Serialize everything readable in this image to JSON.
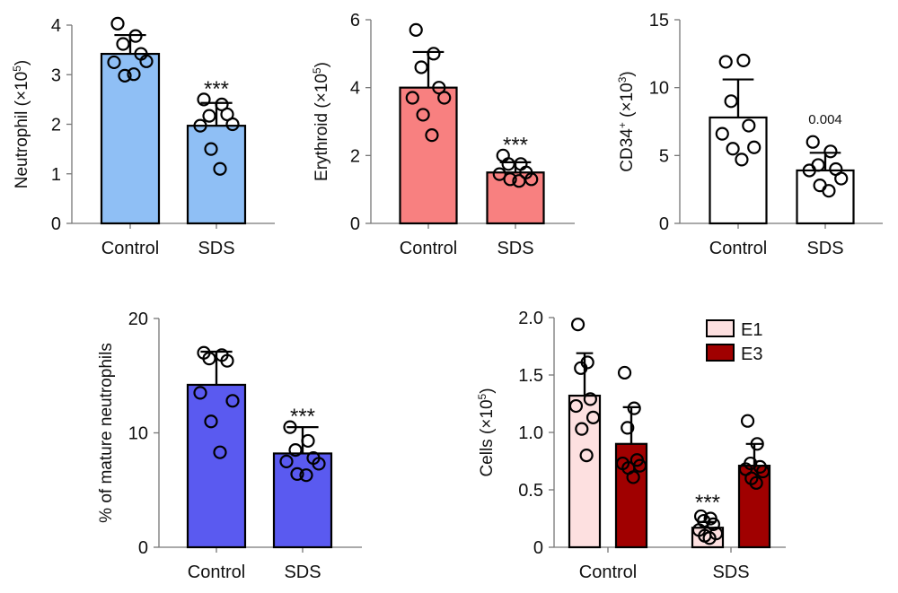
{
  "chart_data": [
    {
      "type": "bar",
      "ylabel": "Neutrophil (×10",
      "ylabel_sup": "5",
      "ylabel_end": ")",
      "ylim": [
        0,
        4
      ],
      "yticks": [
        "0",
        "1",
        "2",
        "3",
        "4"
      ],
      "categories": [
        "Control",
        "SDS"
      ],
      "bar_color": "#8fbff5",
      "series": [
        {
          "values": [
            3.42,
            1.97
          ],
          "error_upper": [
            3.8,
            2.43
          ],
          "points": [
            [
              4.03,
              3.78,
              3.62,
              3.42,
              3.25,
              3.27,
              2.98,
              3.01
            ],
            [
              2.5,
              2.4,
              2.17,
              2.2,
              1.97,
              2.0,
              1.5,
              1.1
            ]
          ]
        }
      ],
      "annotations": [
        "",
        "***"
      ]
    },
    {
      "type": "bar",
      "ylabel": "Erythroid (×10",
      "ylabel_sup": "5",
      "ylabel_end": ")",
      "ylim": [
        0,
        6
      ],
      "yticks": [
        "0",
        "2",
        "4",
        "6"
      ],
      "categories": [
        "Control",
        "SDS"
      ],
      "bar_color": "#f88080",
      "series": [
        {
          "values": [
            4.0,
            1.5
          ],
          "error_upper": [
            5.05,
            1.8
          ],
          "points": [
            [
              5.7,
              5.0,
              4.6,
              4.0,
              3.7,
              3.7,
              3.2,
              2.6
            ],
            [
              2.0,
              1.75,
              1.75,
              1.5,
              1.45,
              1.3,
              1.3,
              1.25
            ]
          ]
        }
      ],
      "annotations": [
        "",
        "***"
      ]
    },
    {
      "type": "bar",
      "ylabel": "CD34",
      "ylabel_sup": "+",
      "ylabel_end": " (×10",
      "ylabel_sup2": "3",
      "ylabel_end2": ")",
      "ylim": [
        0,
        15
      ],
      "yticks": [
        "0",
        "5",
        "10",
        "15"
      ],
      "categories": [
        "Control",
        "SDS"
      ],
      "bar_color": "#ffffff",
      "series": [
        {
          "values": [
            7.8,
            3.9
          ],
          "error_upper": [
            10.6,
            5.2
          ],
          "points": [
            [
              11.9,
              12.0,
              9.0,
              7.2,
              6.6,
              5.6,
              5.5,
              4.7
            ],
            [
              6.0,
              5.3,
              4.3,
              4.0,
              3.9,
              3.3,
              2.8,
              2.4
            ]
          ]
        }
      ],
      "annotations": [
        "",
        "0.004"
      ]
    },
    {
      "type": "bar",
      "ylabel": "% of mature neutrophils",
      "ylim": [
        0,
        20
      ],
      "yticks": [
        "0",
        "10",
        "20"
      ],
      "categories": [
        "Control",
        "SDS"
      ],
      "bar_color": "#5a5af0",
      "series": [
        {
          "values": [
            14.2,
            8.2
          ],
          "error_upper": [
            17.1,
            10.5
          ],
          "points": [
            [
              17.0,
              16.8,
              16.5,
              16.3,
              13.5,
              12.8,
              11.0,
              8.3
            ],
            [
              10.5,
              9.3,
              8.5,
              7.8,
              7.5,
              7.3,
              6.4,
              6.3
            ]
          ]
        }
      ],
      "annotations": [
        "",
        "***"
      ]
    },
    {
      "type": "bar",
      "ylabel": "Cells (×10",
      "ylabel_sup": "5",
      "ylabel_end": ")",
      "ylim": [
        0,
        2.0
      ],
      "yticks": [
        "0",
        "0.5",
        "1.0",
        "1.5",
        "2.0"
      ],
      "categories": [
        "Control",
        "SDS"
      ],
      "legend_placement": "top-right",
      "series": [
        {
          "name": "E1",
          "color": "#fde0e0",
          "values": [
            1.32,
            0.17
          ],
          "error_upper": [
            1.69,
            0.22
          ],
          "points": [
            [
              1.94,
              1.61,
              1.56,
              1.29,
              1.23,
              1.13,
              1.03,
              0.8
            ],
            [
              0.27,
              0.25,
              0.23,
              0.2,
              0.15,
              0.12,
              0.1,
              0.08
            ]
          ]
        },
        {
          "name": "E3",
          "color": "#a00000",
          "values": [
            0.9,
            0.71
          ],
          "error_upper": [
            1.22,
            0.9
          ],
          "points": [
            [
              1.52,
              1.21,
              1.04,
              0.76,
              0.73,
              0.71,
              0.69,
              0.61
            ],
            [
              1.1,
              0.9,
              0.73,
              0.7,
              0.68,
              0.66,
              0.6,
              0.56
            ]
          ]
        }
      ],
      "annotations": [
        "",
        "***"
      ]
    }
  ]
}
